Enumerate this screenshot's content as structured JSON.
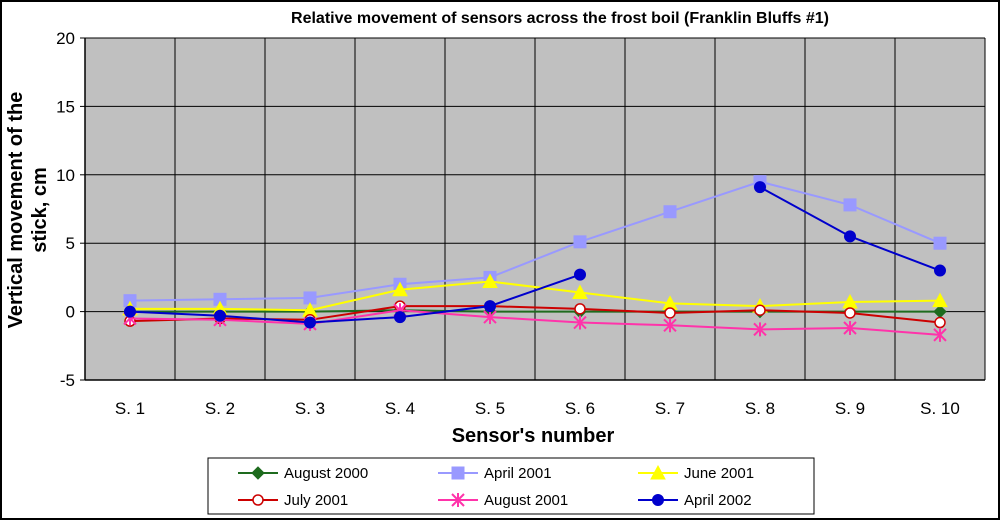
{
  "chart_data": {
    "type": "line",
    "title": "Relative movement of sensors across the frost boil (Franklin Bluffs #1)",
    "xlabel": "Sensor's number",
    "ylabel_line1": "Vertical movement of the",
    "ylabel_line2": "stick, cm",
    "categories": [
      "S. 1",
      "S. 2",
      "S. 3",
      "S. 4",
      "S. 5",
      "S. 6",
      "S. 7",
      "S. 8",
      "S. 9",
      "S. 10"
    ],
    "ylim": [
      -5,
      20
    ],
    "yticks": [
      -5,
      0,
      5,
      10,
      15,
      20
    ],
    "grid": true,
    "legend_position": "bottom",
    "plot_background": "#c0c0c0",
    "series": [
      {
        "name": "August 2000",
        "color": "#1e6b1e",
        "marker": "diamond",
        "values": [
          0,
          0,
          0,
          0.1,
          0,
          0,
          0,
          0,
          0,
          0
        ]
      },
      {
        "name": "April 2001",
        "color": "#9999ff",
        "marker": "square",
        "values": [
          0.8,
          0.9,
          1.0,
          2.0,
          2.5,
          5.1,
          7.3,
          9.5,
          7.8,
          5.0
        ]
      },
      {
        "name": "June 2001",
        "color": "#ffff00",
        "marker": "triangle",
        "values": [
          0.2,
          0.2,
          0.1,
          1.6,
          2.2,
          1.4,
          0.6,
          0.4,
          0.7,
          0.8
        ]
      },
      {
        "name": "July 2001",
        "color": "#cc0000",
        "marker": "open-circle",
        "values": [
          -0.7,
          -0.5,
          -0.6,
          0.4,
          0.4,
          0.2,
          -0.1,
          0.1,
          -0.1,
          -0.8
        ]
      },
      {
        "name": "August 2001",
        "color": "#ff33aa",
        "marker": "star",
        "values": [
          -0.5,
          -0.6,
          -0.9,
          0.1,
          -0.4,
          -0.8,
          -1.0,
          -1.3,
          -1.2,
          -1.7
        ]
      },
      {
        "name": "April 2002",
        "color": "#0000cc",
        "marker": "circle",
        "values": [
          0,
          -0.3,
          -0.8,
          -0.4,
          0.4,
          2.7,
          null,
          9.1,
          5.5,
          3.0
        ]
      }
    ]
  }
}
